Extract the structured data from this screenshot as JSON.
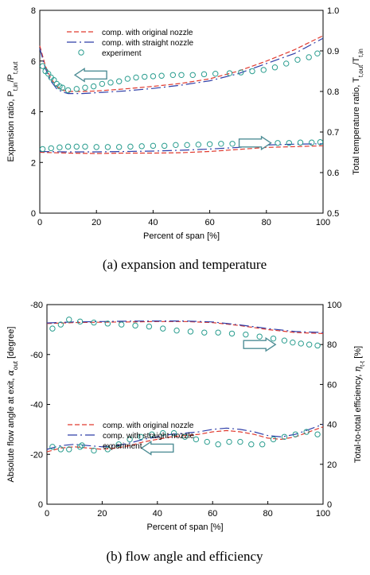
{
  "colors": {
    "original": "#e03a2f",
    "straight": "#2e3ea8",
    "experiment": "#2a9d8f",
    "arrow": "#4f8e96"
  },
  "chart_data": [
    {
      "type": "line",
      "caption": "(a)  expansion  and  temperature",
      "xlabel": "Percent of span [%]",
      "ylabel_left": {
        "main": "Expansion ratio, P",
        "sub1": "t,in",
        "mid": "/P",
        "sub2": "t,out"
      },
      "ylabel_right": {
        "main": "Total temperature ratio, T",
        "sub1": "t,out",
        "mid": "/T",
        "sub2": "t,in"
      },
      "xlim": [
        0,
        100
      ],
      "ylim_left": [
        0,
        8
      ],
      "ylim_right": [
        0.5,
        1.0
      ],
      "xticks": [
        "0",
        "20",
        "40",
        "60",
        "80",
        "100"
      ],
      "yticks_left": [
        "0",
        "2",
        "4",
        "6",
        "8"
      ],
      "yticks_right": [
        "0.5",
        "0.6",
        "0.7",
        "0.8",
        "0.9",
        "1.0"
      ],
      "legend": [
        "comp. with original nozzle",
        "comp. with straight nozzle",
        "experiment"
      ],
      "legend_position": "top-center",
      "series": [
        {
          "name": "comp. with original nozzle",
          "axis": "left",
          "style": "original",
          "x": [
            0,
            2,
            4,
            6,
            8,
            10,
            15,
            20,
            30,
            40,
            50,
            60,
            70,
            80,
            90,
            100
          ],
          "y": [
            6.6,
            5.8,
            5.3,
            5.0,
            4.85,
            4.8,
            4.8,
            4.82,
            4.9,
            5.0,
            5.12,
            5.3,
            5.6,
            6.0,
            6.45,
            7.0
          ]
        },
        {
          "name": "comp. with straight nozzle",
          "axis": "left",
          "style": "straight",
          "x": [
            0,
            2,
            4,
            6,
            8,
            10,
            15,
            20,
            30,
            40,
            50,
            60,
            70,
            80,
            90,
            100
          ],
          "y": [
            6.5,
            5.7,
            5.2,
            4.9,
            4.78,
            4.72,
            4.72,
            4.75,
            4.82,
            4.92,
            5.05,
            5.22,
            5.5,
            5.9,
            6.3,
            6.9
          ]
        },
        {
          "name": "experiment",
          "axis": "left",
          "style": "experiment",
          "x": [
            1,
            2,
            3,
            4,
            5,
            6,
            7,
            8,
            10,
            13,
            16,
            19,
            22,
            25,
            28,
            31,
            34,
            37,
            40,
            43,
            47,
            50,
            54,
            58,
            62,
            67,
            71,
            75,
            79,
            83,
            87,
            91,
            95,
            98
          ],
          "y": [
            5.8,
            5.6,
            5.5,
            5.35,
            5.25,
            5.1,
            5.0,
            4.95,
            4.85,
            4.9,
            4.95,
            5.0,
            5.1,
            5.15,
            5.2,
            5.3,
            5.35,
            5.38,
            5.4,
            5.42,
            5.45,
            5.45,
            5.45,
            5.48,
            5.5,
            5.52,
            5.55,
            5.6,
            5.65,
            5.75,
            5.9,
            6.05,
            6.15,
            6.3
          ]
        },
        {
          "name": "comp. with original nozzle",
          "axis": "right",
          "style": "original",
          "x": [
            0,
            10,
            20,
            30,
            40,
            50,
            60,
            70,
            80,
            90,
            100
          ],
          "y": [
            0.65,
            0.648,
            0.647,
            0.648,
            0.648,
            0.649,
            0.652,
            0.657,
            0.662,
            0.664,
            0.666
          ]
        },
        {
          "name": "comp. with straight nozzle",
          "axis": "right",
          "style": "straight",
          "x": [
            0,
            10,
            20,
            30,
            40,
            50,
            60,
            70,
            80,
            90,
            100
          ],
          "y": [
            0.652,
            0.651,
            0.651,
            0.652,
            0.653,
            0.655,
            0.658,
            0.662,
            0.668,
            0.67,
            0.671
          ]
        },
        {
          "name": "experiment",
          "axis": "right",
          "style": "experiment",
          "x": [
            1,
            4,
            7,
            10,
            13,
            16,
            20,
            24,
            28,
            32,
            36,
            40,
            44,
            48,
            52,
            56,
            60,
            64,
            68,
            72,
            76,
            80,
            84,
            88,
            92,
            96,
            99
          ],
          "y": [
            0.658,
            0.66,
            0.662,
            0.664,
            0.664,
            0.664,
            0.663,
            0.663,
            0.663,
            0.664,
            0.665,
            0.666,
            0.666,
            0.668,
            0.668,
            0.669,
            0.67,
            0.671,
            0.671,
            0.672,
            0.673,
            0.673,
            0.673,
            0.673,
            0.674,
            0.674,
            0.675
          ]
        }
      ],
      "arrows": [
        {
          "dir": "left",
          "x": 18,
          "axis": "left",
          "y": 5.45
        },
        {
          "dir": "right",
          "x": 76,
          "axis": "right",
          "y": 0.673
        }
      ]
    },
    {
      "type": "line",
      "caption": "(b)  flow  angle  and  efficiency",
      "xlabel": "Percent of span [%]",
      "ylabel_left": {
        "main": "Absolute flow angle at exit, ",
        "greek": "α",
        "sub1": "out",
        "tail": " [degree]"
      },
      "ylabel_right": {
        "main": "Total-to-total efficiency, ",
        "greek": "η",
        "sub1": "t-t",
        "tail": " [%]"
      },
      "xlim": [
        0,
        100
      ],
      "ylim_left": [
        0,
        -80
      ],
      "ylim_right": [
        0,
        100
      ],
      "xticks": [
        "0",
        "20",
        "40",
        "60",
        "80",
        "100"
      ],
      "yticks_left": [
        "0",
        "-20",
        "-40",
        "-60",
        "-80"
      ],
      "yticks_right": [
        "0",
        "20",
        "40",
        "60",
        "80",
        "100"
      ],
      "legend": [
        "comp. with original nozzle",
        "comp. with straight nozzle",
        "experiment"
      ],
      "legend_position": "center-left",
      "series": [
        {
          "name": "comp. with original nozzle",
          "axis": "left",
          "style": "original",
          "x": [
            0,
            5,
            10,
            15,
            20,
            25,
            30,
            35,
            40,
            45,
            50,
            55,
            60,
            65,
            70,
            75,
            80,
            85,
            90,
            95,
            100
          ],
          "y": [
            -21,
            -22.5,
            -23,
            -22.5,
            -22,
            -22.5,
            -23.5,
            -25,
            -26,
            -27,
            -27.5,
            -28,
            -29,
            -29.5,
            -29,
            -28,
            -26.5,
            -26,
            -27,
            -29,
            -31
          ]
        },
        {
          "name": "comp. with straight nozzle",
          "axis": "left",
          "style": "straight",
          "x": [
            0,
            5,
            10,
            15,
            20,
            25,
            30,
            35,
            40,
            45,
            50,
            55,
            60,
            65,
            70,
            75,
            80,
            85,
            90,
            95,
            100
          ],
          "y": [
            -22,
            -23.5,
            -24,
            -23.5,
            -23,
            -23.5,
            -24.5,
            -26,
            -27,
            -28,
            -28.5,
            -29,
            -30,
            -30.5,
            -30,
            -29,
            -27.5,
            -27,
            -28,
            -30,
            -32
          ]
        },
        {
          "name": "experiment",
          "axis": "left",
          "style": "experiment",
          "x": [
            2,
            5,
            8,
            12,
            17,
            22,
            26,
            30,
            34,
            38,
            42,
            46,
            50,
            54,
            58,
            62,
            66,
            70,
            74,
            78,
            82,
            86,
            90,
            94,
            98
          ],
          "y": [
            -23,
            -22,
            -22,
            -23,
            -21.5,
            -22,
            -24,
            -26,
            -27,
            -28,
            -28.5,
            -28.5,
            -27,
            -26,
            -25,
            -24,
            -25,
            -25,
            -24,
            -24,
            -26,
            -27,
            -28,
            -29,
            -28
          ]
        },
        {
          "name": "comp. with original nozzle",
          "axis": "right",
          "style": "original",
          "x": [
            0,
            10,
            20,
            30,
            40,
            50,
            60,
            70,
            80,
            90,
            100
          ],
          "y": [
            90.5,
            91,
            91.2,
            91.3,
            91.5,
            91.5,
            91,
            89.5,
            87.5,
            86,
            85.5
          ]
        },
        {
          "name": "comp. with straight nozzle",
          "axis": "right",
          "style": "straight",
          "x": [
            0,
            10,
            20,
            30,
            40,
            50,
            60,
            70,
            80,
            90,
            100
          ],
          "y": [
            90.8,
            91.3,
            91.5,
            91.7,
            91.8,
            91.8,
            91.3,
            89.8,
            88,
            86.5,
            86
          ]
        },
        {
          "name": "experiment",
          "axis": "right",
          "style": "experiment",
          "x": [
            2,
            5,
            8,
            12,
            17,
            22,
            27,
            32,
            37,
            42,
            47,
            52,
            57,
            62,
            67,
            72,
            77,
            82,
            86,
            89,
            92,
            95,
            98
          ],
          "y": [
            88,
            90,
            92.5,
            91.5,
            91,
            90.5,
            90,
            89.5,
            89,
            88,
            87,
            86.5,
            86,
            86,
            85.5,
            85,
            84,
            83,
            82,
            81,
            80.5,
            80,
            79.5
          ]
        }
      ],
      "arrows": [
        {
          "dir": "right",
          "x": 77,
          "axis": "right",
          "y": 80
        },
        {
          "dir": "left",
          "x": 40,
          "axis": "left",
          "y": -22.5
        }
      ]
    }
  ]
}
